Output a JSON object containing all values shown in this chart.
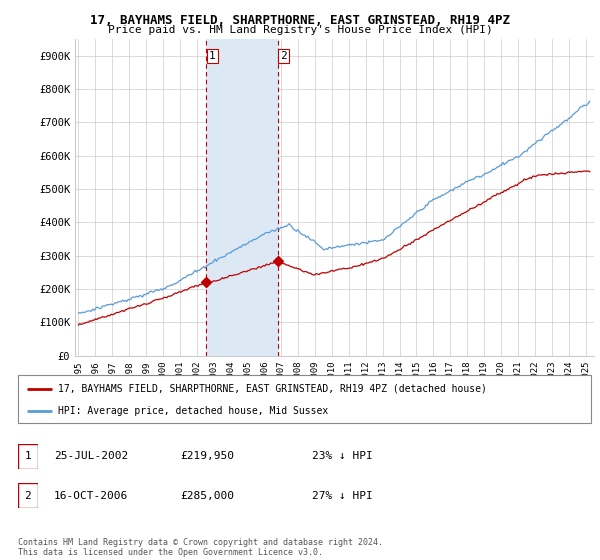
{
  "title": "17, BAYHAMS FIELD, SHARPTHORNE, EAST GRINSTEAD, RH19 4PZ",
  "subtitle": "Price paid vs. HM Land Registry's House Price Index (HPI)",
  "ylabel_ticks": [
    "£0",
    "£100K",
    "£200K",
    "£300K",
    "£400K",
    "£500K",
    "£600K",
    "£700K",
    "£800K",
    "£900K"
  ],
  "ytick_vals": [
    0,
    100000,
    200000,
    300000,
    400000,
    500000,
    600000,
    700000,
    800000,
    900000
  ],
  "ylim": [
    0,
    950000
  ],
  "xlim_start": 1994.8,
  "xlim_end": 2025.5,
  "hpi_color": "#5b9bd5",
  "price_color": "#c00000",
  "sale1_x": 2002.56,
  "sale1_y": 219950,
  "sale2_x": 2006.79,
  "sale2_y": 285000,
  "vline_color": "#c00000",
  "shade_color": "#dce9f5",
  "legend_label_price": "17, BAYHAMS FIELD, SHARPTHORNE, EAST GRINSTEAD, RH19 4PZ (detached house)",
  "legend_label_hpi": "HPI: Average price, detached house, Mid Sussex",
  "table_row1": [
    "1",
    "25-JUL-2002",
    "£219,950",
    "23% ↓ HPI"
  ],
  "table_row2": [
    "2",
    "16-OCT-2006",
    "£285,000",
    "27% ↓ HPI"
  ],
  "footer": "Contains HM Land Registry data © Crown copyright and database right 2024.\nThis data is licensed under the Open Government Licence v3.0.",
  "background_color": "#ffffff",
  "grid_color": "#cccccc",
  "xtick_years": [
    1995,
    1996,
    1997,
    1998,
    1999,
    2000,
    2001,
    2002,
    2003,
    2004,
    2005,
    2006,
    2007,
    2008,
    2009,
    2010,
    2011,
    2012,
    2013,
    2014,
    2015,
    2016,
    2017,
    2018,
    2019,
    2020,
    2021,
    2022,
    2023,
    2024,
    2025
  ]
}
